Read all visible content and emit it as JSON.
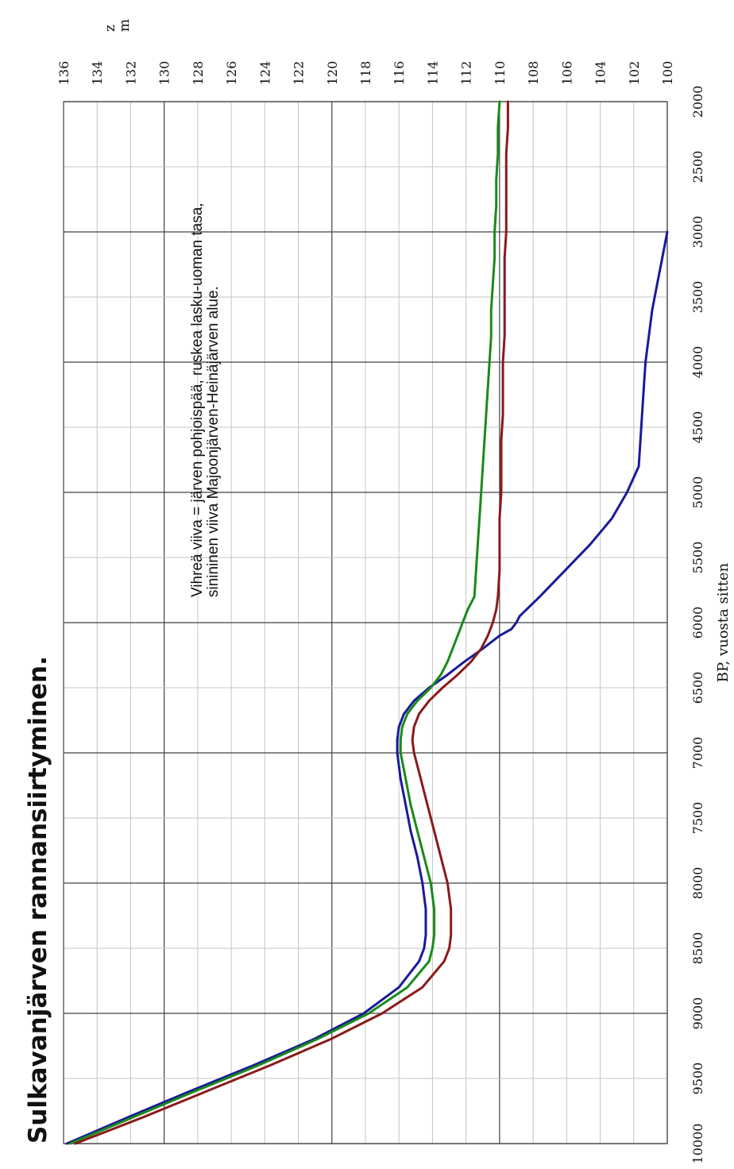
{
  "chart_data": {
    "type": "line",
    "title": "Sulkavanjärven rannansiirtyminen.",
    "note_lines": [
      "Vihreä viiva = järven pohjoispää, ruskea lasku-uoman tasa,",
      "sinininen viiva Majoonjärven-Heinäjärven alue."
    ],
    "xlabel": "BP, vuosta sitten",
    "ylabel_lines": [
      "z",
      "m"
    ],
    "xlim": [
      10000,
      2000
    ],
    "ylim": [
      100,
      136
    ],
    "x_ticks": [
      "10000",
      "9500",
      "9000",
      "8500",
      "8000",
      "7500",
      "7000",
      "6500",
      "6000",
      "5500",
      "5000",
      "4500",
      "4000",
      "3500",
      "3000",
      "2500",
      "2000"
    ],
    "y_ticks": [
      "100",
      "102",
      "104",
      "106",
      "108",
      "110",
      "112",
      "114",
      "116",
      "118",
      "120",
      "122",
      "124",
      "126",
      "128",
      "130",
      "132",
      "134",
      "136"
    ],
    "grid": true,
    "series": [
      {
        "color": "#1a1a9a",
        "x": [
          10000,
          9800,
          9600,
          9400,
          9200,
          9000,
          8800,
          8600,
          8500,
          8400,
          8200,
          8000,
          7800,
          7600,
          7400,
          7200,
          7000,
          6900,
          6800,
          6700,
          6600,
          6500,
          6400,
          6300,
          6200,
          6100,
          6050,
          6000,
          5950,
          5800,
          5600,
          5400,
          5200,
          5000,
          4800,
          4600,
          4400,
          4200,
          4000,
          3800,
          3600,
          3400,
          3200,
          3000
        ],
        "y": [
          135.8,
          132.2,
          128.5,
          124.7,
          121.1,
          118.1,
          116.0,
          114.8,
          114.5,
          114.4,
          114.4,
          114.6,
          114.9,
          115.3,
          115.6,
          115.9,
          116.1,
          116.1,
          116.0,
          115.7,
          115.1,
          114.2,
          113.1,
          112.1,
          111.0,
          110.0,
          109.3,
          109.0,
          108.8,
          107.6,
          106.1,
          104.6,
          103.3,
          102.4,
          101.7,
          101.6,
          101.5,
          101.4,
          101.3,
          101.1,
          100.9,
          100.6,
          100.3,
          100.0
        ]
      },
      {
        "color": "#1a8a1a",
        "x": [
          10000,
          9800,
          9600,
          9400,
          9200,
          9000,
          8800,
          8600,
          8500,
          8400,
          8200,
          8000,
          7800,
          7600,
          7400,
          7200,
          7000,
          6900,
          6800,
          6700,
          6600,
          6500,
          6400,
          6300,
          6200,
          6100,
          6000,
          5900,
          5800,
          5600,
          5400,
          5200,
          5000,
          4800,
          4600,
          4400,
          4200,
          4000,
          3800,
          3600,
          3400,
          3200,
          3000,
          2800,
          2600,
          2400,
          2200,
          2000
        ],
        "y": [
          135.6,
          131.9,
          128.2,
          124.4,
          120.9,
          117.8,
          115.5,
          114.2,
          114.0,
          113.9,
          113.9,
          114.1,
          114.5,
          114.9,
          115.3,
          115.6,
          115.9,
          115.9,
          115.8,
          115.5,
          114.9,
          114.1,
          113.5,
          113.1,
          112.8,
          112.5,
          112.2,
          111.9,
          111.5,
          111.4,
          111.3,
          111.2,
          111.1,
          111.0,
          110.9,
          110.8,
          110.7,
          110.6,
          110.5,
          110.5,
          110.4,
          110.3,
          110.3,
          110.2,
          110.2,
          110.1,
          110.1,
          110.0
        ]
      },
      {
        "color": "#8b1a1a",
        "x": [
          10000,
          9800,
          9600,
          9400,
          9200,
          9000,
          8800,
          8600,
          8500,
          8400,
          8200,
          8000,
          7800,
          7600,
          7400,
          7200,
          7000,
          6900,
          6800,
          6700,
          6600,
          6500,
          6400,
          6300,
          6200,
          6100,
          6000,
          5900,
          5800,
          5600,
          5400,
          5200,
          5000,
          4800,
          4600,
          4400,
          4200,
          4000,
          3800,
          3600,
          3400,
          3200,
          3000,
          2800,
          2600,
          2400,
          2200,
          2000
        ],
        "y": [
          135.3,
          131.3,
          127.5,
          123.7,
          120.1,
          117.0,
          114.6,
          113.3,
          113.0,
          112.9,
          112.9,
          113.1,
          113.5,
          113.9,
          114.3,
          114.7,
          115.1,
          115.2,
          115.1,
          114.8,
          114.2,
          113.4,
          112.5,
          111.7,
          111.1,
          110.7,
          110.4,
          110.2,
          110.1,
          110.0,
          110.0,
          110.0,
          109.9,
          109.9,
          109.9,
          109.8,
          109.8,
          109.8,
          109.7,
          109.7,
          109.7,
          109.7,
          109.6,
          109.6,
          109.6,
          109.6,
          109.5,
          109.5
        ]
      }
    ]
  }
}
